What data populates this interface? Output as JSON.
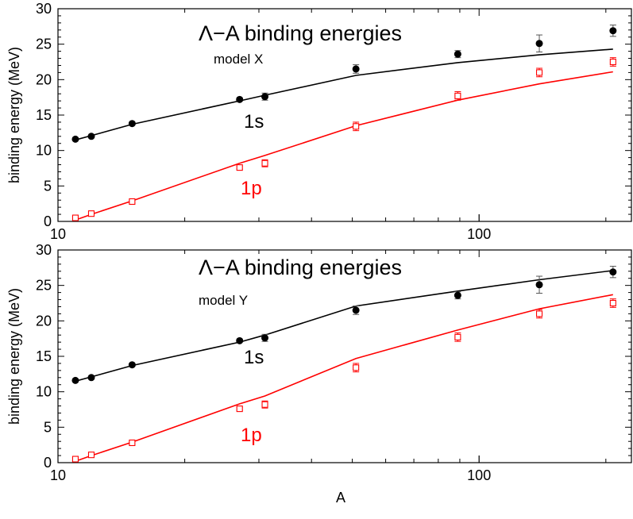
{
  "chart_data": [
    {
      "type": "scatter",
      "title": "Λ−A binding energies",
      "subtitle": "model X",
      "xlabel": "",
      "ylabel": "binding energy (MeV)",
      "xscale": "log",
      "xlim": [
        10,
        230
      ],
      "ylim": [
        0,
        30
      ],
      "xticks": [
        {
          "value": 10,
          "label": "10"
        },
        {
          "value": 100,
          "label": "100"
        }
      ],
      "yticks": [
        0,
        5,
        10,
        15,
        20,
        25,
        30
      ],
      "series": [
        {
          "name": "1s",
          "color": "#000000",
          "marker": "filled-circle",
          "points": [
            {
              "x": 11,
              "y": 11.6,
              "err": 0.2
            },
            {
              "x": 12,
              "y": 12.0,
              "err": 0.2
            },
            {
              "x": 15,
              "y": 13.8,
              "err": 0.2
            },
            {
              "x": 27,
              "y": 17.2,
              "err": 0.2
            },
            {
              "x": 31,
              "y": 17.6,
              "err": 0.5
            },
            {
              "x": 51,
              "y": 21.5,
              "err": 0.6
            },
            {
              "x": 89,
              "y": 23.6,
              "err": 0.5
            },
            {
              "x": 139,
              "y": 25.1,
              "err": 1.2
            },
            {
              "x": 208,
              "y": 26.9,
              "err": 0.8
            }
          ],
          "line": [
            {
              "x": 11,
              "y": 11.5
            },
            {
              "x": 12,
              "y": 12.1
            },
            {
              "x": 15,
              "y": 13.7
            },
            {
              "x": 27,
              "y": 17.0
            },
            {
              "x": 31,
              "y": 17.8
            },
            {
              "x": 51,
              "y": 20.6
            },
            {
              "x": 89,
              "y": 22.4
            },
            {
              "x": 139,
              "y": 23.5
            },
            {
              "x": 208,
              "y": 24.3
            }
          ]
        },
        {
          "name": "1p",
          "color": "#ff0000",
          "marker": "open-square",
          "points": [
            {
              "x": 11,
              "y": 0.5,
              "err": 0.2
            },
            {
              "x": 12,
              "y": 1.1,
              "err": 0.2
            },
            {
              "x": 15,
              "y": 2.8,
              "err": 0.2
            },
            {
              "x": 27,
              "y": 7.6,
              "err": 0.2
            },
            {
              "x": 31,
              "y": 8.2,
              "err": 0.5
            },
            {
              "x": 51,
              "y": 13.4,
              "err": 0.6
            },
            {
              "x": 89,
              "y": 17.7,
              "err": 0.6
            },
            {
              "x": 139,
              "y": 21.0,
              "err": 0.6
            },
            {
              "x": 208,
              "y": 22.5,
              "err": 0.6
            }
          ],
          "line": [
            {
              "x": 11,
              "y": 0.2
            },
            {
              "x": 12,
              "y": 1.0
            },
            {
              "x": 15,
              "y": 2.9
            },
            {
              "x": 27,
              "y": 8.2
            },
            {
              "x": 31,
              "y": 9.3
            },
            {
              "x": 51,
              "y": 13.5
            },
            {
              "x": 89,
              "y": 17.1
            },
            {
              "x": 139,
              "y": 19.4
            },
            {
              "x": 208,
              "y": 21.1
            }
          ]
        }
      ]
    },
    {
      "type": "scatter",
      "title": "Λ−A binding energies",
      "subtitle": "model Y",
      "xlabel": "A",
      "ylabel": "binding energy (MeV)",
      "xscale": "log",
      "xlim": [
        10,
        230
      ],
      "ylim": [
        0,
        30
      ],
      "xticks": [
        {
          "value": 10,
          "label": "10"
        },
        {
          "value": 100,
          "label": "100"
        }
      ],
      "yticks": [
        0,
        5,
        10,
        15,
        20,
        25,
        30
      ],
      "series": [
        {
          "name": "1s",
          "color": "#000000",
          "marker": "filled-circle",
          "points": [
            {
              "x": 11,
              "y": 11.6,
              "err": 0.2
            },
            {
              "x": 12,
              "y": 12.0,
              "err": 0.2
            },
            {
              "x": 15,
              "y": 13.8,
              "err": 0.2
            },
            {
              "x": 27,
              "y": 17.2,
              "err": 0.2
            },
            {
              "x": 31,
              "y": 17.6,
              "err": 0.5
            },
            {
              "x": 51,
              "y": 21.5,
              "err": 0.6
            },
            {
              "x": 89,
              "y": 23.6,
              "err": 0.5
            },
            {
              "x": 139,
              "y": 25.1,
              "err": 1.2
            },
            {
              "x": 208,
              "y": 26.9,
              "err": 0.8
            }
          ],
          "line": [
            {
              "x": 11,
              "y": 11.5
            },
            {
              "x": 12,
              "y": 12.1
            },
            {
              "x": 15,
              "y": 13.7
            },
            {
              "x": 27,
              "y": 17.0
            },
            {
              "x": 31,
              "y": 18.0
            },
            {
              "x": 51,
              "y": 22.1
            },
            {
              "x": 89,
              "y": 24.2
            },
            {
              "x": 139,
              "y": 25.8
            },
            {
              "x": 208,
              "y": 27.1
            }
          ]
        },
        {
          "name": "1p",
          "color": "#ff0000",
          "marker": "open-square",
          "points": [
            {
              "x": 11,
              "y": 0.5,
              "err": 0.2
            },
            {
              "x": 12,
              "y": 1.1,
              "err": 0.2
            },
            {
              "x": 15,
              "y": 2.8,
              "err": 0.2
            },
            {
              "x": 27,
              "y": 7.6,
              "err": 0.2
            },
            {
              "x": 31,
              "y": 8.2,
              "err": 0.5
            },
            {
              "x": 51,
              "y": 13.4,
              "err": 0.6
            },
            {
              "x": 89,
              "y": 17.7,
              "err": 0.6
            },
            {
              "x": 139,
              "y": 21.0,
              "err": 0.6
            },
            {
              "x": 208,
              "y": 22.5,
              "err": 0.6
            }
          ],
          "line": [
            {
              "x": 11,
              "y": 0.2
            },
            {
              "x": 12,
              "y": 1.0
            },
            {
              "x": 15,
              "y": 2.9
            },
            {
              "x": 27,
              "y": 8.3
            },
            {
              "x": 31,
              "y": 9.4
            },
            {
              "x": 51,
              "y": 14.7
            },
            {
              "x": 89,
              "y": 18.7
            },
            {
              "x": 139,
              "y": 21.7
            },
            {
              "x": 208,
              "y": 23.7
            }
          ]
        }
      ]
    }
  ]
}
